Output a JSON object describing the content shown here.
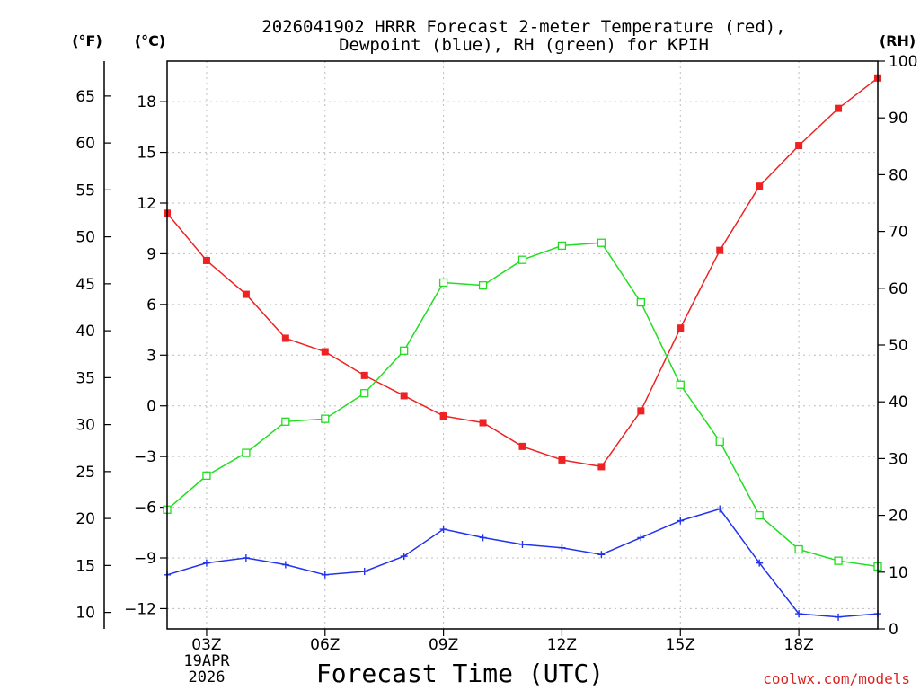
{
  "chart_data": {
    "type": "line",
    "title": "2026041902 HRRR Forecast 2-meter Temperature (red),",
    "subtitle": "Dewpoint (blue), RH (green) for KPIH",
    "xlabel": "Forecast Time (UTC)",
    "credit": "coolwx.com/models",
    "units": {
      "fahrenheit": "(°F)",
      "celsius": "(°C)",
      "rh": "(RH)"
    },
    "x_hours": [
      2,
      3,
      4,
      5,
      6,
      7,
      8,
      9,
      10,
      11,
      12,
      13,
      14,
      15,
      16,
      17,
      18,
      19,
      20
    ],
    "x_tick_hours": [
      3,
      6,
      9,
      12,
      15,
      18
    ],
    "x_tick_labels": [
      "03Z",
      "06Z",
      "09Z",
      "12Z",
      "15Z",
      "18Z"
    ],
    "date_label": [
      "19APR",
      "2026"
    ],
    "xlim": [
      2,
      20
    ],
    "celsius_ylim": [
      -13.2,
      20.4
    ],
    "celsius_ticks": [
      -12,
      -9,
      -6,
      -3,
      0,
      3,
      6,
      9,
      12,
      15,
      18
    ],
    "celsius_tick_labels": [
      "−12",
      "−9",
      "−6",
      "−3",
      "0",
      "3",
      "6",
      "9",
      "12",
      "15",
      "18"
    ],
    "fahrenheit_ticks": [
      10,
      15,
      20,
      25,
      30,
      35,
      40,
      45,
      50,
      55,
      60,
      65
    ],
    "fahrenheit_tick_labels": [
      "10",
      "15",
      "20",
      "25",
      "30",
      "35",
      "40",
      "45",
      "50",
      "55",
      "60",
      "65"
    ],
    "rh_ylim": [
      0,
      100
    ],
    "rh_ticks": [
      0,
      10,
      20,
      30,
      40,
      50,
      60,
      70,
      80,
      90,
      100
    ],
    "rh_tick_labels": [
      "0",
      "10",
      "20",
      "30",
      "40",
      "50",
      "60",
      "70",
      "80",
      "90",
      "100"
    ],
    "series": [
      {
        "name": "Temperature",
        "unit": "C",
        "color": "#ee2222",
        "marker": "filled-square",
        "values": [
          11.4,
          8.6,
          6.6,
          4.0,
          3.2,
          1.8,
          0.6,
          -0.6,
          -1.0,
          -2.4,
          -3.2,
          -3.6,
          -0.3,
          4.6,
          9.2,
          13.0,
          15.4,
          17.6,
          19.4
        ]
      },
      {
        "name": "Dewpoint",
        "unit": "C",
        "color": "#2233ee",
        "marker": "plus",
        "values": [
          -10.0,
          -9.3,
          -9.0,
          -9.4,
          -10.0,
          -9.8,
          -8.9,
          -7.3,
          -7.8,
          -8.2,
          -8.4,
          -8.8,
          -7.8,
          -6.8,
          -6.1,
          -9.3,
          -12.3,
          -12.5,
          -12.3
        ]
      },
      {
        "name": "Relative Humidity",
        "unit": "%",
        "color": "#22dd22",
        "marker": "open-square",
        "values": [
          21,
          27,
          31,
          36.5,
          37,
          41.5,
          49,
          61,
          60.5,
          65,
          67.5,
          68,
          57.5,
          43,
          33,
          20,
          14,
          12,
          11
        ]
      }
    ]
  }
}
